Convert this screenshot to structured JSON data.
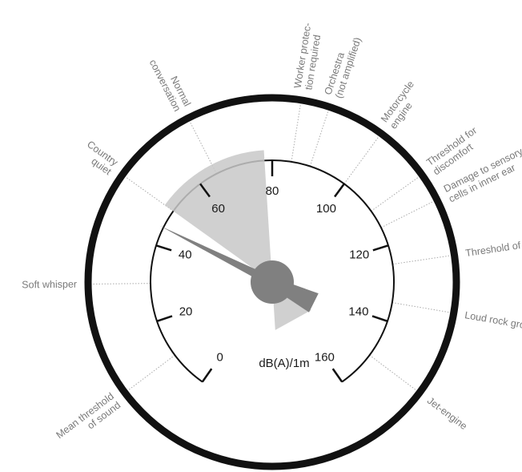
{
  "gauge": {
    "unit": "dB(A)/1m",
    "scale_min": 0,
    "scale_max": 160,
    "major_ticks": [
      0,
      20,
      40,
      60,
      80,
      100,
      120,
      140,
      160
    ],
    "needle_value": 45,
    "highlight_range": [
      50,
      78
    ],
    "colors": {
      "outer_ring": "#111111",
      "scale_arc": "#111111",
      "needle": "#808080",
      "highlight": "#c8c8c8",
      "leader": "#aaaaaa",
      "source_text": "#7a7a7a"
    }
  },
  "sources": [
    {
      "lines": [
        "Mean threshold",
        "of sound"
      ],
      "value": 10
    },
    {
      "lines": [
        "Soft whisper"
      ],
      "value": 30
    },
    {
      "lines": [
        "Country",
        "quiet"
      ],
      "value": 50
    },
    {
      "lines": [
        "Normal",
        "conversation"
      ],
      "value": 65
    },
    {
      "lines": [
        "Worker protec-",
        "tion required"
      ],
      "value": 85
    },
    {
      "lines": [
        "Orchestra",
        "(not amplified)"
      ],
      "value": 90
    },
    {
      "lines": [
        "Motorcycle",
        "engine"
      ],
      "value": 100
    },
    {
      "lines": [
        "Threshold for",
        "discomfort"
      ],
      "value": 110
    },
    {
      "lines": [
        "Damage to sensory",
        "cells in inner ear"
      ],
      "value": 115
    },
    {
      "lines": [
        "Threshold of pain"
      ],
      "value": 125
    },
    {
      "lines": [
        "Loud rock group"
      ],
      "value": 135
    },
    {
      "lines": [
        "Jet-engine"
      ],
      "value": 150
    }
  ]
}
